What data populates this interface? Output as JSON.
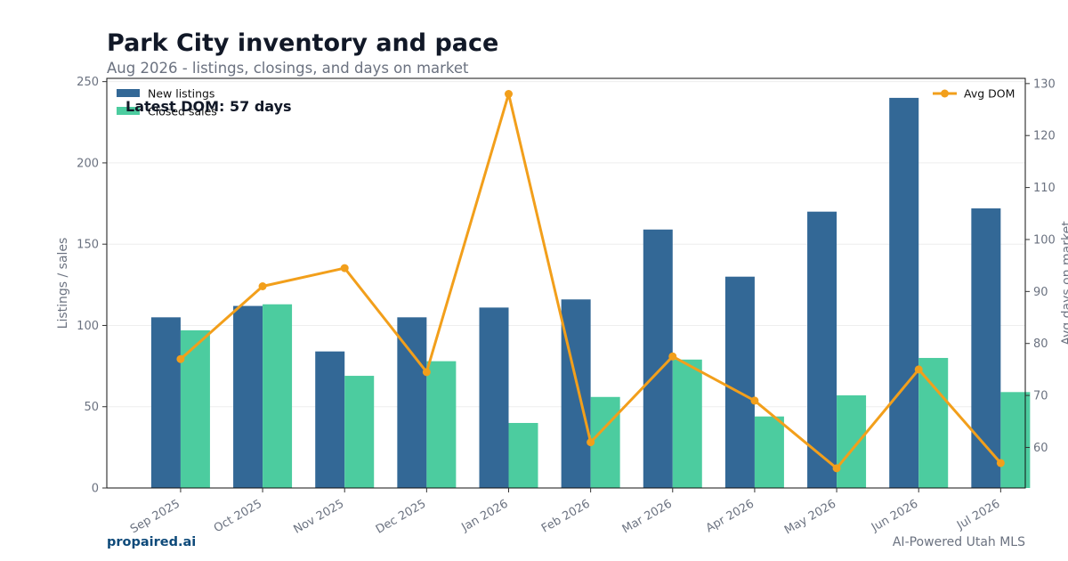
{
  "header": {
    "title": "Park City inventory and pace",
    "subtitle": "Aug 2026 - listings, closings, and days on market"
  },
  "footer": {
    "brand": "propaired.ai",
    "credit": "AI-Powered Utah MLS"
  },
  "chart_data": {
    "type": "bar",
    "categories": [
      "Sep 2025",
      "Oct 2025",
      "Nov 2025",
      "Dec 2025",
      "Jan 2026",
      "Feb 2026",
      "Mar 2026",
      "Apr 2026",
      "May 2026",
      "Jun 2026",
      "Jul 2026"
    ],
    "series": [
      {
        "name": "New listings",
        "type": "bar",
        "axis": "left",
        "color": "#336896",
        "values": [
          105,
          112,
          84,
          105,
          111,
          116,
          159,
          130,
          170,
          240,
          172
        ]
      },
      {
        "name": "Closed sales",
        "type": "bar",
        "axis": "left",
        "color": "#4ccc9f",
        "values": [
          97,
          113,
          69,
          78,
          40,
          56,
          79,
          44,
          57,
          80,
          59
        ]
      },
      {
        "name": "Avg DOM",
        "type": "line",
        "axis": "right",
        "color": "#f29f1b",
        "values": [
          77,
          91,
          94.5,
          74.5,
          128,
          61,
          77.5,
          69,
          56,
          75,
          57
        ]
      }
    ],
    "ylabel": "Listings / sales",
    "y2label": "Avg days on market",
    "ylim": [
      0,
      252
    ],
    "y2lim": [
      52.2,
      131
    ],
    "yticks": [
      "0",
      "50",
      "100",
      "150",
      "200",
      "250"
    ],
    "y2ticks": [
      "60",
      "70",
      "80",
      "90",
      "100",
      "110",
      "120",
      "130"
    ],
    "annotation": "Latest DOM: 57 days",
    "legend_left_position": "top-left",
    "legend_right_position": "top-right",
    "grid": true
  }
}
